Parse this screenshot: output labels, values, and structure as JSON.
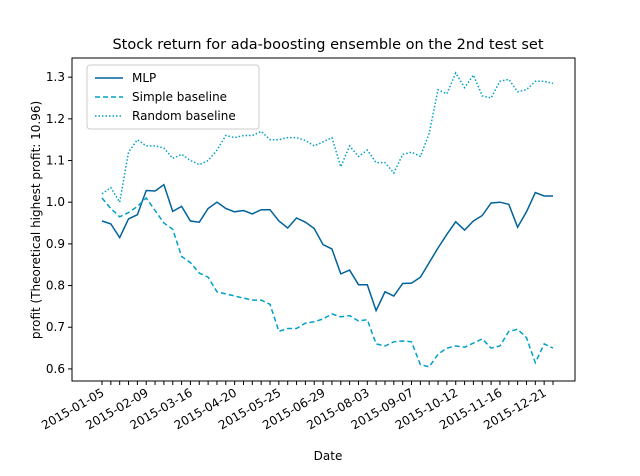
{
  "chart_data": {
    "type": "line",
    "title": "Stock return for ada-boosting ensemble on the 2nd test set",
    "x_label": "Date",
    "y_label": "profit (Theoretical highest profit: 10.96)",
    "categories": [
      "2015-01-05",
      null,
      null,
      null,
      null,
      "2015-02-09",
      null,
      null,
      null,
      null,
      "2015-03-16",
      null,
      null,
      null,
      null,
      "2015-04-20",
      null,
      null,
      null,
      null,
      "2015-05-25",
      null,
      null,
      null,
      null,
      "2015-06-29",
      null,
      null,
      null,
      null,
      "2015-08-03",
      null,
      null,
      null,
      null,
      "2015-09-07",
      null,
      null,
      null,
      null,
      "2015-10-12",
      null,
      null,
      null,
      null,
      "2015-11-16",
      null,
      null,
      null,
      null,
      "2015-12-21",
      null
    ],
    "series": [
      {
        "name": "MLP",
        "color": "#00629b",
        "linestyle": "solid",
        "values": [
          0.955,
          0.948,
          0.915,
          0.96,
          0.97,
          1.028,
          1.027,
          1.042,
          0.978,
          0.99,
          0.955,
          0.952,
          0.985,
          1.0,
          0.985,
          0.977,
          0.98,
          0.972,
          0.982,
          0.982,
          0.955,
          0.938,
          0.962,
          0.952,
          0.937,
          0.898,
          0.888,
          0.828,
          0.837,
          0.802,
          0.802,
          0.74,
          0.785,
          0.775,
          0.805,
          0.806,
          0.82,
          0.855,
          0.89,
          0.923,
          0.953,
          0.933,
          0.955,
          0.968,
          0.998,
          1.0,
          0.995,
          0.94,
          0.977,
          1.023,
          1.015,
          1.015
        ]
      },
      {
        "name": "Simple baseline",
        "color": "#00a0c6",
        "linestyle": "dashed",
        "values": [
          1.01,
          0.985,
          0.965,
          0.975,
          0.99,
          1.01,
          0.98,
          0.95,
          0.935,
          0.87,
          0.855,
          0.83,
          0.82,
          0.785,
          0.78,
          0.775,
          0.77,
          0.765,
          0.765,
          0.755,
          0.69,
          0.697,
          0.697,
          0.71,
          0.713,
          0.72,
          0.732,
          0.725,
          0.728,
          0.715,
          0.718,
          0.66,
          0.655,
          0.665,
          0.667,
          0.665,
          0.61,
          0.605,
          0.635,
          0.65,
          0.655,
          0.652,
          0.662,
          0.672,
          0.65,
          0.655,
          0.69,
          0.695,
          0.675,
          0.615,
          0.66,
          0.65
        ]
      },
      {
        "name": "Random baseline",
        "color": "#00a0c6",
        "linestyle": "dotted",
        "values": [
          1.02,
          1.035,
          1.0,
          1.12,
          1.15,
          1.135,
          1.135,
          1.13,
          1.105,
          1.115,
          1.1,
          1.09,
          1.1,
          1.125,
          1.16,
          1.155,
          1.16,
          1.16,
          1.17,
          1.15,
          1.15,
          1.155,
          1.155,
          1.148,
          1.135,
          1.145,
          1.155,
          1.085,
          1.135,
          1.11,
          1.125,
          1.095,
          1.095,
          1.07,
          1.115,
          1.12,
          1.11,
          1.165,
          1.27,
          1.26,
          1.31,
          1.275,
          1.305,
          1.255,
          1.25,
          1.29,
          1.295,
          1.265,
          1.27,
          1.29,
          1.29,
          1.285
        ]
      }
    ],
    "ylim": [
      0.571,
      1.346
    ],
    "yticks": [
      {
        "value": 0.6,
        "label": "0.6"
      },
      {
        "value": 0.7,
        "label": "0.7"
      },
      {
        "value": 0.8,
        "label": "0.8"
      },
      {
        "value": 0.9,
        "label": "0.9"
      },
      {
        "value": 1.0,
        "label": "1.0"
      },
      {
        "value": 1.1,
        "label": "1.1"
      },
      {
        "value": 1.2,
        "label": "1.2"
      },
      {
        "value": 1.3,
        "label": "1.3"
      }
    ],
    "legend": "upper left",
    "grid": false
  }
}
